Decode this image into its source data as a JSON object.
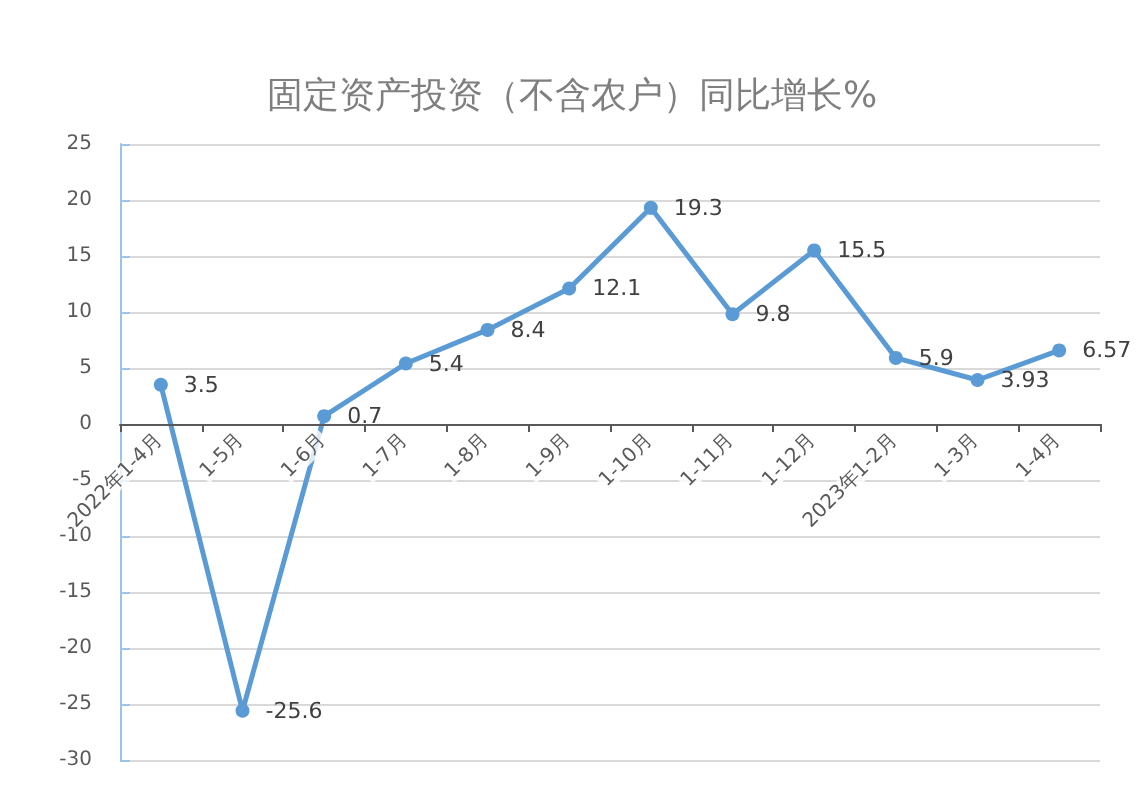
{
  "chart_data": {
    "type": "line",
    "title": "固定资产投资（不含农户）同比增长%",
    "categories": [
      "2022年1-4月",
      "1-5月",
      "1-6月",
      "1-7月",
      "1-8月",
      "1-9月",
      "1-10月",
      "1-11月",
      "1-12月",
      "2023年1-2月",
      "1-3月",
      "1-4月"
    ],
    "values": [
      3.5,
      -25.6,
      0.7,
      5.4,
      8.4,
      12.1,
      19.3,
      9.8,
      15.5,
      5.9,
      3.93,
      6.57
    ],
    "color": "#5b9bd5",
    "ylim": [
      -30,
      25
    ],
    "yticks": [
      -30,
      -25,
      -20,
      -15,
      -10,
      -5,
      0,
      5,
      10,
      15,
      20,
      25
    ],
    "grid": "y",
    "marker": "circle",
    "line_style": "solid",
    "data_labels": true
  }
}
